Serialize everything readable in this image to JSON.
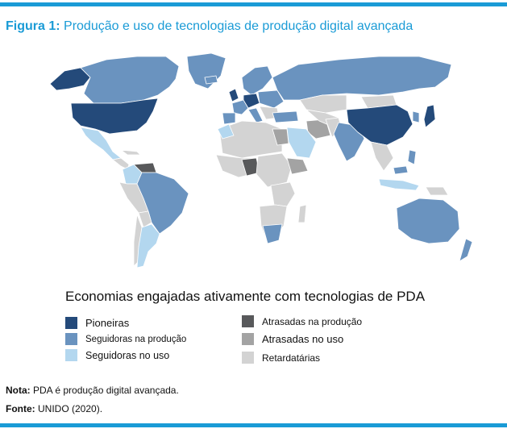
{
  "colors": {
    "accent": "#1a9bd6",
    "pioneiras": "#244a7a",
    "seguidoras_producao": "#6a93bf",
    "seguidoras_uso": "#b3d7ef",
    "atrasadas_producao": "#58595b",
    "atrasadas_uso": "#a3a3a3",
    "retardatarias": "#d3d3d3",
    "country_border": "#ffffff"
  },
  "figure": {
    "label": "Figura 1:",
    "title": "Produção e uso de tecnologias de produção digital avançada"
  },
  "legend": {
    "title": "Economias engajadas ativamente com tecnologias de PDA",
    "items": [
      {
        "label": "Pioneiras",
        "color": "#244a7a"
      },
      {
        "label": "Seguidoras na produção",
        "color": "#6a93bf"
      },
      {
        "label": "Seguidoras no uso",
        "color": "#b3d7ef"
      },
      {
        "label": "Atrasadas na produção",
        "color": "#58595b"
      },
      {
        "label": "Atrasadas no uso",
        "color": "#a3a3a3"
      },
      {
        "label": "Retardatárias",
        "color": "#d3d3d3"
      }
    ]
  },
  "note": {
    "label": "Nota:",
    "text": "PDA é produção digital avançada."
  },
  "source": {
    "label": "Fonte:",
    "text": "UNIDO (2020)."
  }
}
